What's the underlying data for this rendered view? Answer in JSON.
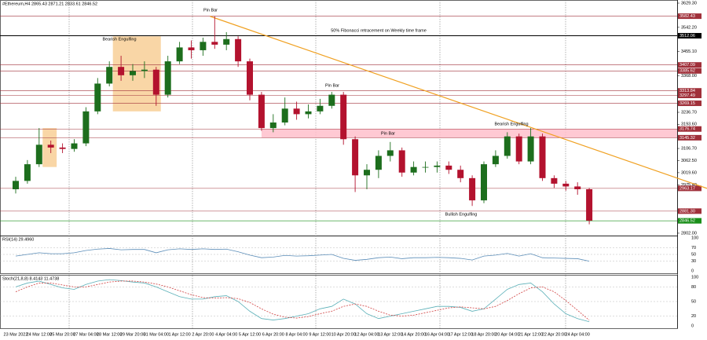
{
  "header": "#Ethereum,H4  2865.43 2871.21 2833.61 2846.52",
  "chart_data": [
    {
      "type": "candlestick",
      "categories": [
        "23 Mar 2022",
        null,
        "24 Mar 12:00",
        null,
        "25 Mar 20:00",
        null,
        "27 Mar 04:00",
        null,
        "28 Mar 12:00",
        null,
        "29 Mar 20:00",
        null,
        "31 Mar 04:00",
        null,
        "1 Apr 12:00",
        null,
        "2 Apr 20:00",
        null,
        "4 Apr 04:00",
        null,
        "5 Apr 12:00",
        null,
        "6 Apr 20:00",
        null,
        "8 Apr 04:00",
        null,
        "9 Apr 12:00",
        null,
        "10 Apr 20:00",
        null,
        "12 Apr 04:00",
        null,
        "13 Apr 12:00",
        null,
        "14 Apr 20:00",
        null,
        "16 Apr 04:00",
        null,
        "17 Apr 12:00",
        null,
        "18 Apr 20:00",
        null,
        "20 Apr 04:00",
        null,
        "21 Apr 12:00",
        null,
        "22 Apr 20:00",
        null,
        "24 Apr 04:00",
        null
      ],
      "open": [
        2960,
        2990,
        3050,
        3120,
        3110,
        3105,
        3125,
        3240,
        3340,
        3400,
        3370,
        3385,
        3390,
        3300,
        3420,
        3470,
        3460,
        3490,
        3480,
        3500,
        3420,
        3300,
        3180,
        3200,
        3250,
        3230,
        3240,
        3260,
        3300,
        3140,
        3010,
        3030,
        3080,
        3100,
        3020,
        3040,
        3040,
        3045,
        3030,
        3000,
        2920,
        3050,
        3080,
        3150,
        3060,
        3150,
        3000,
        2980,
        2970,
        2960
      ],
      "high": [
        3005,
        3065,
        3180,
        3135,
        3125,
        3140,
        3255,
        3360,
        3420,
        3440,
        3410,
        3420,
        3400,
        3440,
        3490,
        3495,
        3505,
        3582,
        3525,
        3510,
        3430,
        3310,
        3230,
        3290,
        3275,
        3265,
        3285,
        3310,
        3310,
        3150,
        3050,
        3100,
        3130,
        3110,
        3060,
        3060,
        3060,
        3060,
        3045,
        3010,
        3060,
        3100,
        3165,
        3160,
        3180,
        3160,
        3010,
        2990,
        2985,
        2965
      ],
      "low": [
        2945,
        2980,
        3040,
        3090,
        3090,
        3095,
        3115,
        3230,
        3330,
        3350,
        3350,
        3360,
        3260,
        3290,
        3410,
        3430,
        3440,
        3465,
        3460,
        3400,
        3280,
        3170,
        3165,
        3190,
        3210,
        3215,
        3230,
        3250,
        3120,
        2950,
        2960,
        3000,
        3060,
        3005,
        3010,
        3020,
        3020,
        3015,
        2985,
        2900,
        2910,
        3040,
        3070,
        3050,
        3050,
        2990,
        2965,
        2955,
        2940,
        2834
      ],
      "close": [
        2990,
        3050,
        3120,
        3110,
        3105,
        3125,
        3240,
        3340,
        3400,
        3370,
        3385,
        3390,
        3300,
        3420,
        3470,
        3460,
        3490,
        3480,
        3500,
        3420,
        3300,
        3180,
        3200,
        3250,
        3230,
        3240,
        3260,
        3300,
        3140,
        3010,
        3030,
        3080,
        3100,
        3020,
        3040,
        3040,
        3045,
        3030,
        3000,
        2920,
        3050,
        3080,
        3150,
        3060,
        3150,
        3000,
        2980,
        2970,
        2960,
        2847
      ],
      "up_color": "#1d6e1d",
      "down_color": "#b3122e",
      "ylim": [
        2793.4,
        3640.6
      ],
      "yticks": [
        {
          "value": 3629.3,
          "label": "3629.30"
        },
        {
          "value": 3542.2,
          "label": "3542.20"
        },
        {
          "value": 3455.1,
          "label": "3455.10"
        },
        {
          "value": 3368,
          "label": "3368.00"
        },
        {
          "value": 3236.7,
          "label": "3236.70"
        },
        {
          "value": 3193.6,
          "label": "3193.60"
        },
        {
          "value": 3106.7,
          "label": "3106.70"
        },
        {
          "value": 3062.5,
          "label": "3062.50"
        },
        {
          "value": 3019.6,
          "label": "3019.60"
        },
        {
          "value": 2975.4,
          "label": "2975.40"
        },
        {
          "value": 2802,
          "label": "2802.00"
        }
      ],
      "levels": [
        {
          "value": 3582.43,
          "label": "3582.43",
          "color": "#a0303a"
        },
        {
          "value": 3512.06,
          "label": "3512.06",
          "color": "#000000"
        },
        {
          "value": 3407.09,
          "label": "3407.09",
          "color": "#a0303a"
        },
        {
          "value": 3385.62,
          "label": "3385.62",
          "color": "#a0303a"
        },
        {
          "value": 3313.84,
          "label": "3313.84",
          "color": "#a0303a"
        },
        {
          "value": 3297.49,
          "label": "3297.49",
          "color": "#a0303a"
        },
        {
          "value": 3269.15,
          "label": "3269.15",
          "color": "#a0303a"
        },
        {
          "value": 3176.74,
          "label": "3176.74",
          "color": "#a0303a"
        },
        {
          "value": 3145.32,
          "label": "3145.32",
          "color": "#a0303a"
        },
        {
          "value": 2963.17,
          "label": "2963.17",
          "color": "#a0303a"
        },
        {
          "value": 2881.3,
          "label": "2881.30",
          "color": "#a0303a"
        }
      ],
      "current_price": 2846.52,
      "current_color": "#1a8f1a",
      "zone_color": "#ffc0cb",
      "trend_color": "#f0a020",
      "box_color": "#f8cc90",
      "annotations": [
        "Pin Bar",
        "Bearish Engulfing",
        "50% Fibonacci retracement on Weekly time frame",
        "Pin Bar",
        "Pin Bar",
        "Bearish Engulfing",
        "Bullish Engulfing"
      ]
    },
    {
      "type": "line",
      "title": "RSI(14) 29.4960",
      "ylim": [
        0,
        100
      ],
      "yticks": [
        100,
        70,
        50,
        30,
        0
      ],
      "series": [
        {
          "color": "#5b8db8",
          "values": [
            45,
            50,
            55,
            52,
            52,
            55,
            62,
            66,
            68,
            64,
            65,
            65,
            55,
            64,
            67,
            65,
            67,
            65,
            66,
            58,
            48,
            40,
            42,
            47,
            45,
            46,
            48,
            50,
            38,
            32,
            35,
            40,
            42,
            37,
            40,
            40,
            41,
            40,
            38,
            33,
            45,
            48,
            53,
            45,
            52,
            40,
            39,
            38,
            37,
            29.5
          ]
        }
      ]
    },
    {
      "type": "line",
      "title": "Stoch(21,8,8) 8.4143 11.4738",
      "ylim": [
        0,
        100
      ],
      "yticks": [
        100,
        80,
        50,
        20,
        0
      ],
      "series": [
        {
          "color": "#5bb0b8",
          "values": [
            80,
            88,
            92,
            85,
            78,
            75,
            85,
            92,
            95,
            93,
            90,
            88,
            80,
            70,
            60,
            55,
            55,
            60,
            62,
            50,
            30,
            15,
            12,
            15,
            20,
            25,
            35,
            40,
            55,
            45,
            25,
            15,
            20,
            25,
            30,
            35,
            40,
            40,
            38,
            30,
            35,
            55,
            75,
            85,
            88,
            70,
            45,
            25,
            15,
            8.4
          ]
        },
        {
          "color": "#d04040",
          "dashed": true,
          "values": [
            70,
            80,
            88,
            88,
            84,
            80,
            80,
            85,
            90,
            92,
            92,
            90,
            86,
            80,
            72,
            64,
            58,
            57,
            58,
            56,
            48,
            35,
            24,
            18,
            16,
            19,
            25,
            30,
            40,
            45,
            40,
            30,
            22,
            20,
            22,
            27,
            32,
            37,
            39,
            37,
            35,
            40,
            52,
            66,
            78,
            80,
            70,
            52,
            32,
            11.5
          ]
        }
      ]
    }
  ]
}
